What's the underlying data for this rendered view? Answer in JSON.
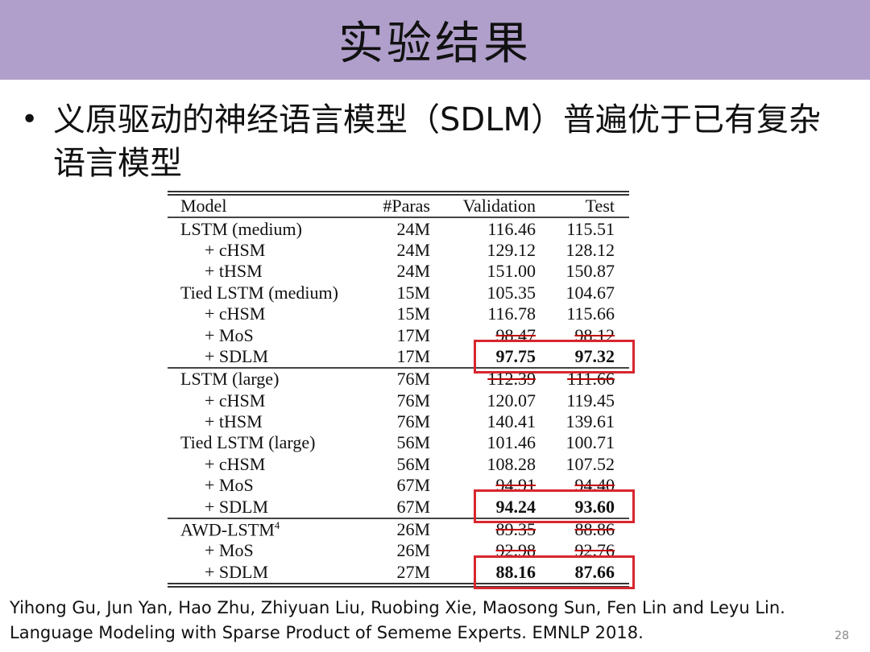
{
  "title": "实验结果",
  "bullet": {
    "symbol": "•",
    "text": "义原驱动的神经语言模型（SDLM）普遍优于已有复杂语言模型"
  },
  "table": {
    "headers": {
      "model": "Model",
      "paras": "#Paras",
      "validation": "Validation",
      "test": "Test"
    },
    "groups": [
      {
        "rows": [
          {
            "model": "LSTM (medium)",
            "sub": false,
            "paras": "24M",
            "validation": "116.46",
            "test": "115.51",
            "bold": false
          },
          {
            "model": "+ cHSM",
            "sub": true,
            "paras": "24M",
            "validation": "129.12",
            "test": "128.12",
            "bold": false
          },
          {
            "model": "+ tHSM",
            "sub": true,
            "paras": "24M",
            "validation": "151.00",
            "test": "150.87",
            "bold": false
          },
          {
            "model": "Tied LSTM (medium)",
            "sub": false,
            "paras": "15M",
            "validation": "105.35",
            "test": "104.67",
            "bold": false
          },
          {
            "model": "+ cHSM",
            "sub": true,
            "paras": "15M",
            "validation": "116.78",
            "test": "115.66",
            "bold": false
          },
          {
            "model": "+ MoS",
            "sub": true,
            "paras": "17M",
            "validation": "98.47",
            "test": "98.12",
            "bold": false,
            "strike": true
          },
          {
            "model": "+ SDLM",
            "sub": true,
            "paras": "17M",
            "validation": "97.75",
            "test": "97.32",
            "bold": true,
            "boxed": true
          }
        ]
      },
      {
        "rows": [
          {
            "model": "LSTM (large)",
            "sub": false,
            "paras": "76M",
            "validation": "112.39",
            "test": "111.66",
            "bold": false,
            "strike": true
          },
          {
            "model": "+ cHSM",
            "sub": true,
            "paras": "76M",
            "validation": "120.07",
            "test": "119.45",
            "bold": false
          },
          {
            "model": "+ tHSM",
            "sub": true,
            "paras": "76M",
            "validation": "140.41",
            "test": "139.61",
            "bold": false
          },
          {
            "model": "Tied LSTM (large)",
            "sub": false,
            "paras": "56M",
            "validation": "101.46",
            "test": "100.71",
            "bold": false
          },
          {
            "model": "+ cHSM",
            "sub": true,
            "paras": "56M",
            "validation": "108.28",
            "test": "107.52",
            "bold": false
          },
          {
            "model": "+ MoS",
            "sub": true,
            "paras": "67M",
            "validation": "94.91",
            "test": "94.40",
            "bold": false,
            "strike": true
          },
          {
            "model": "+ SDLM",
            "sub": true,
            "paras": "67M",
            "validation": "94.24",
            "test": "93.60",
            "bold": true,
            "boxed": true
          }
        ]
      },
      {
        "rows": [
          {
            "model": "AWD-LSTM",
            "sup": "4",
            "sub": false,
            "paras": "26M",
            "validation": "89.35",
            "test": "88.86",
            "bold": false,
            "strike": true
          },
          {
            "model": "+ MoS",
            "sub": true,
            "paras": "26M",
            "validation": "92.98",
            "test": "92.76",
            "bold": false,
            "strike": true
          },
          {
            "model": "+ SDLM",
            "sub": true,
            "paras": "27M",
            "validation": "88.16",
            "test": "87.66",
            "bold": true,
            "boxed": true
          }
        ]
      }
    ],
    "box_color": "#d8262e"
  },
  "citation": {
    "line1": "Yihong Gu, Jun Yan, Hao Zhu, Zhiyuan Liu, Ruobing Xie, Maosong Sun, Fen Lin and Leyu Lin.",
    "line2": "Language Modeling with Sparse Product of Sememe Experts. EMNLP 2018."
  },
  "page_number": "28",
  "colors": {
    "title_bar": "#b09fcb"
  }
}
